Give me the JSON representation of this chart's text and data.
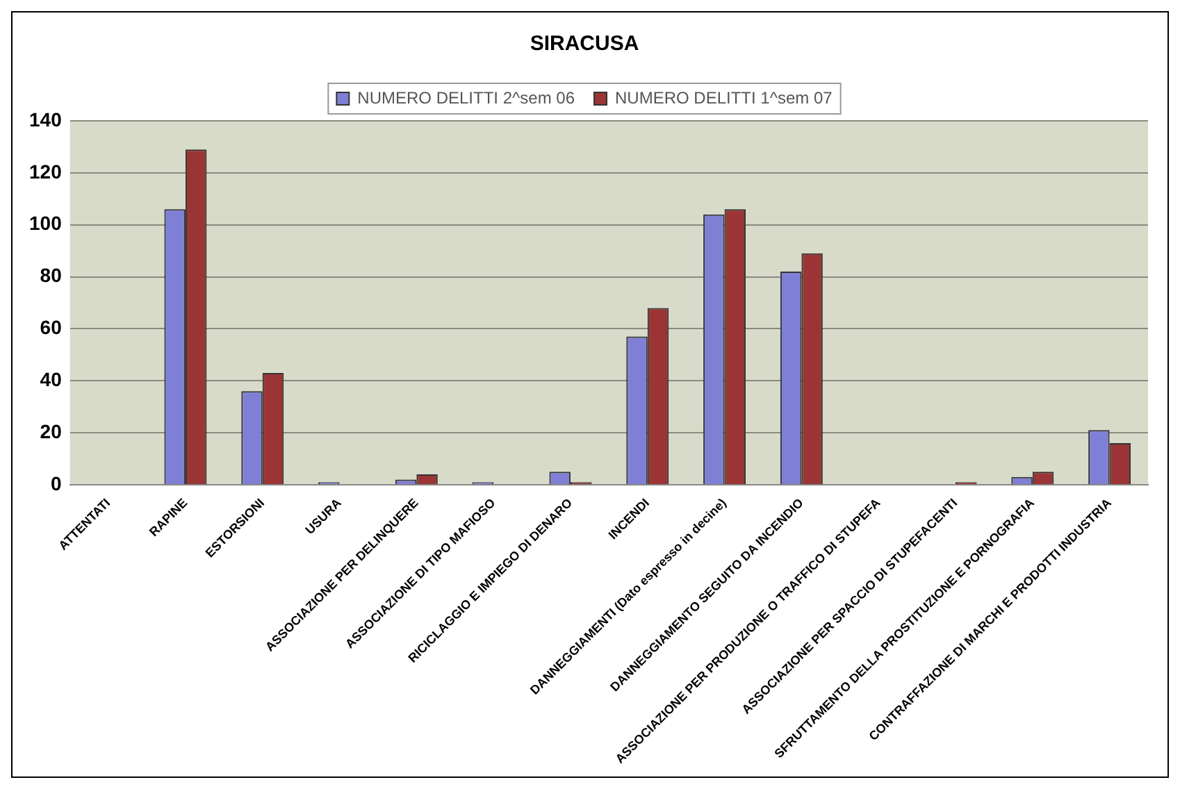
{
  "chart_data": {
    "type": "bar",
    "title": "SIRACUSA",
    "categories": [
      "ATTENTATI",
      "RAPINE",
      "ESTORSIONI",
      "USURA",
      "ASSOCIAZIONE PER DELINQUERE",
      "ASSOCIAZIONE DI TIPO MAFIOSO",
      "RICICLAGGIO E IMPIEGO DI DENARO",
      "INCENDI",
      "DANNEGGIAMENTI (Dato espresso in decine)",
      "DANNEGGIAMENTO SEGUITO DA INCENDIO",
      "ASSOCIAZIONE PER PRODUZIONE O TRAFFICO DI STUPEFA",
      "ASSOCIAZIONE PER SPACCIO DI STUPEFACENTI",
      "SFRUTTAMENTO DELLA PROSTITUZIONE E PORNOGRAFIA",
      "CONTRAFFAZIONE DI MARCHI E PRODOTTI INDUSTRIA"
    ],
    "series": [
      {
        "name": "NUMERO DELITTI 2^sem 06",
        "color": "#7f7fd6",
        "values": [
          0,
          106,
          36,
          1,
          2,
          1,
          5,
          57,
          104,
          82,
          0,
          0,
          3,
          21
        ]
      },
      {
        "name": "NUMERO DELITTI 1^sem 07",
        "color": "#9b3535",
        "values": [
          0,
          129,
          43,
          0,
          4,
          0,
          1,
          68,
          106,
          89,
          0,
          1,
          5,
          16
        ]
      }
    ],
    "ylim": [
      0,
      140
    ],
    "yticks": [
      0,
      20,
      40,
      60,
      80,
      100,
      120,
      140
    ],
    "grid": "y",
    "legend": "top"
  }
}
